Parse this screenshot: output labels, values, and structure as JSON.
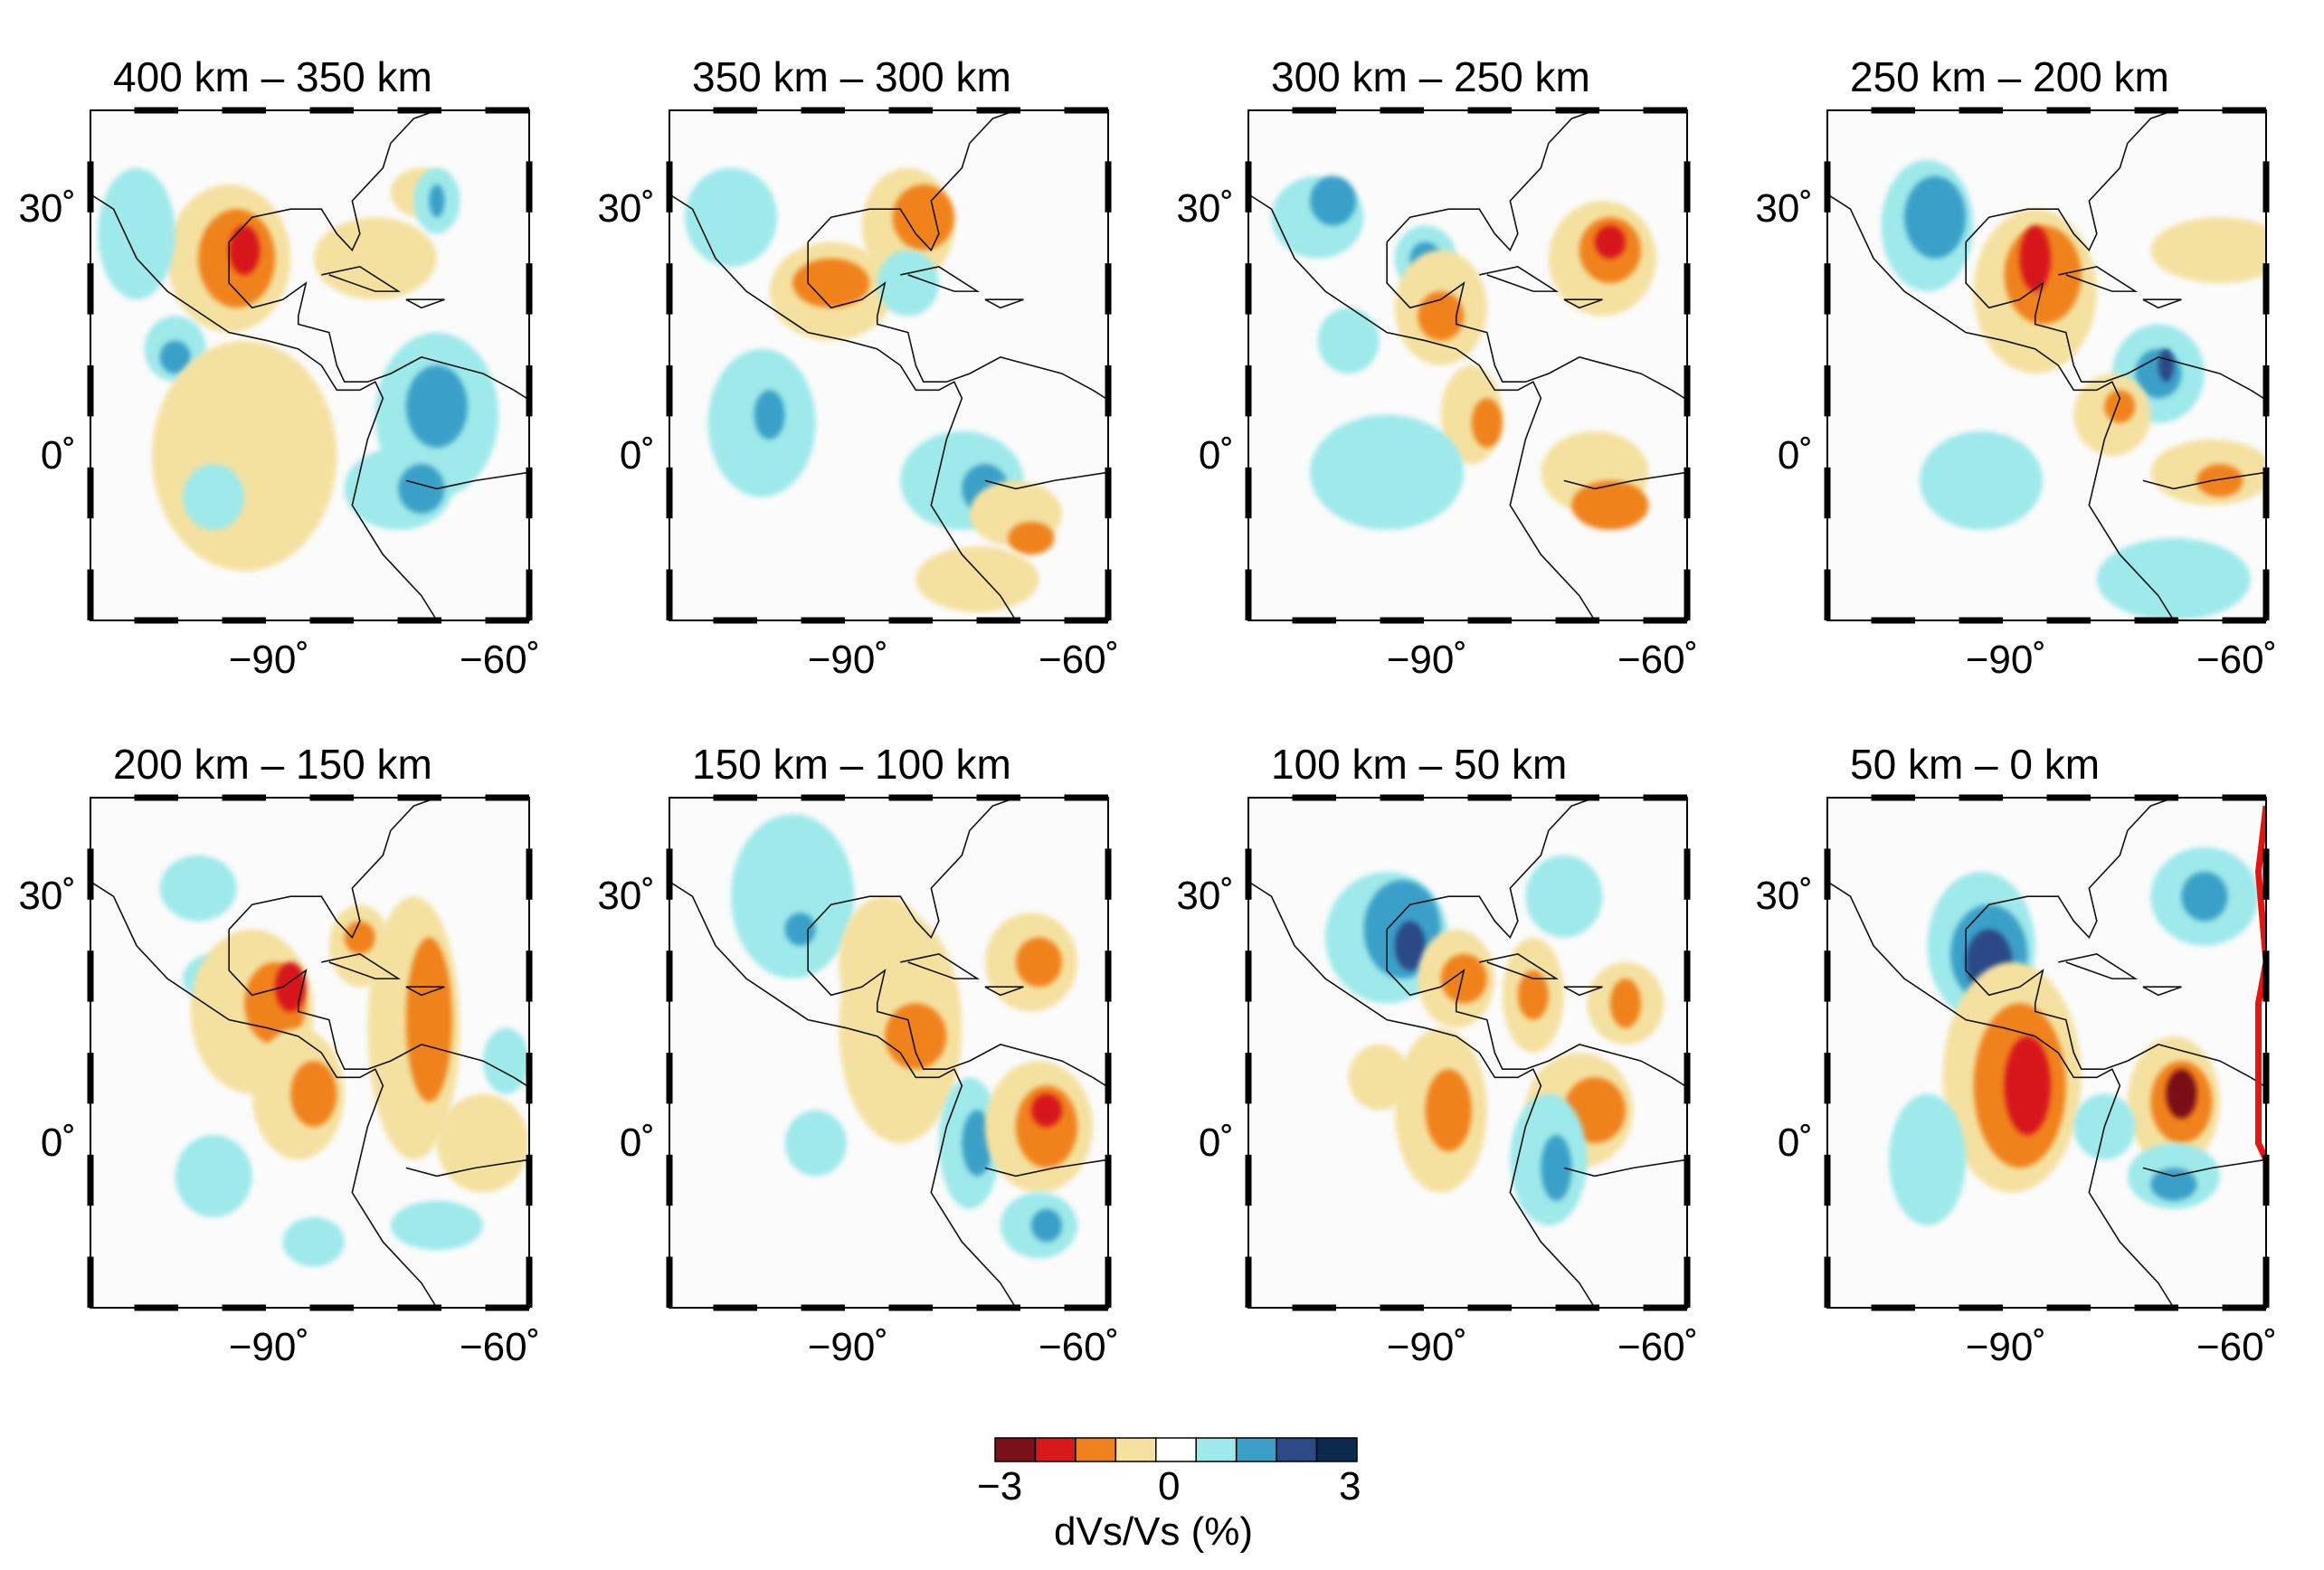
{
  "panels": [
    {
      "title": "400 km – 350 km"
    },
    {
      "title": "350 km – 300 km"
    },
    {
      "title": "300 km – 250 km"
    },
    {
      "title": "250 km – 200 km"
    },
    {
      "title": "200 km – 150 km"
    },
    {
      "title": "150 km – 100 km"
    },
    {
      "title": "100 km – 50 km"
    },
    {
      "title": "50 km – 0 km"
    }
  ],
  "axes": {
    "lat_tick_labels": [
      "30˚",
      "0˚"
    ],
    "lon_tick_labels": [
      "−90˚",
      "−60˚"
    ],
    "lon_range": [
      -115,
      -58
    ],
    "lat_range": [
      -20,
      42
    ]
  },
  "colorbar": {
    "tick_labels": [
      "−3",
      "0",
      "3"
    ],
    "title": "dVs/Vs (%)",
    "range": [
      -3,
      3
    ],
    "colors": [
      "#7a1018",
      "#d7191c",
      "#f0821e",
      "#f4e1a0",
      "#ffffff",
      "#9ee9ea",
      "#3aa0c8",
      "#2b4a86",
      "#0c2a4e"
    ]
  },
  "overlay": {
    "panel": "50 km – 0 km",
    "line_color": "#e8120e"
  }
}
